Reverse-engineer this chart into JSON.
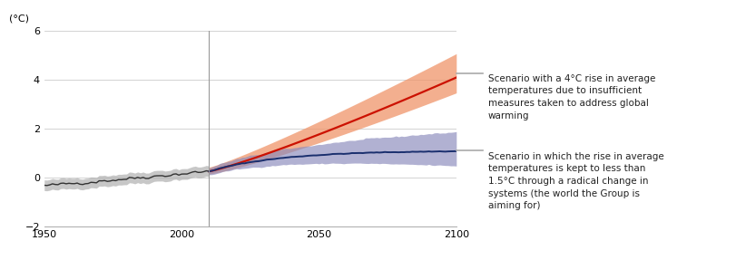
{
  "ylabel": "(°C)",
  "xlim": [
    1950,
    2100
  ],
  "ylim": [
    -2.0,
    6.0
  ],
  "yticks": [
    -2.0,
    0.0,
    2.0,
    4.0,
    6.0
  ],
  "xticks": [
    1950,
    2000,
    2050,
    2100
  ],
  "vline_x": 2010,
  "hist_color": "#333333",
  "hist_band_color": "#aaaaaa",
  "rcp85_line_color": "#cc1100",
  "rcp85_band_color": "#f0956a",
  "rcp15_line_color": "#1a2f6e",
  "rcp15_band_color": "#8888bb",
  "annotation1": "Scenario with a 4°C rise in average\ntemperatures due to insufficient\nmeasures taken to address global\nwarming",
  "annotation2": "Scenario in which the rise in average\ntemperatures is kept to less than\n1.5°C through a radical change in\nsystems (the world the Group is\naiming for)",
  "background_color": "#ffffff",
  "grid_color": "#cccccc",
  "connector_color": "#aaaaaa"
}
